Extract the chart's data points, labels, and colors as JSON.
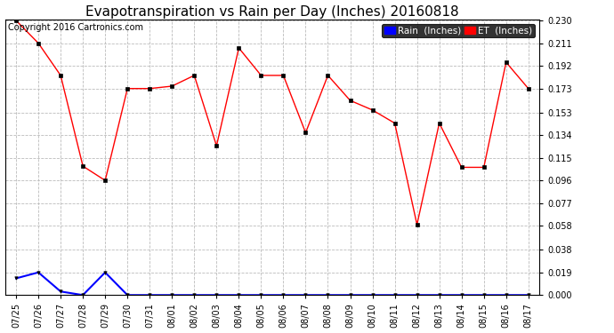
{
  "title": "Evapotranspiration vs Rain per Day (Inches) 20160818",
  "copyright": "Copyright 2016 Cartronics.com",
  "x_labels": [
    "07/25",
    "07/26",
    "07/27",
    "07/28",
    "07/29",
    "07/30",
    "07/31",
    "08/01",
    "08/02",
    "08/03",
    "08/04",
    "08/05",
    "08/06",
    "08/07",
    "08/08",
    "08/09",
    "08/10",
    "08/11",
    "08/12",
    "08/13",
    "08/14",
    "08/15",
    "08/16",
    "08/17"
  ],
  "et_values": [
    0.23,
    0.211,
    0.184,
    0.108,
    0.096,
    0.173,
    0.173,
    0.175,
    0.184,
    0.125,
    0.207,
    0.184,
    0.184,
    0.136,
    0.184,
    0.163,
    0.155,
    0.144,
    0.059,
    0.144,
    0.107,
    0.107,
    0.195,
    0.173
  ],
  "rain_values": [
    0.014,
    0.019,
    0.003,
    0.0,
    0.019,
    0.0,
    0.0,
    0.0,
    0.0,
    0.0,
    0.0,
    0.0,
    0.0,
    0.0,
    0.0,
    0.0,
    0.0,
    0.0,
    0.0,
    0.0,
    0.0,
    0.0,
    0.0,
    0.0
  ],
  "et_color": "#ff0000",
  "rain_color": "#0000ff",
  "legend_rain_bg": "#0000ff",
  "legend_et_bg": "#ff0000",
  "ylim_min": 0.0,
  "ylim_max": 0.23,
  "yticks": [
    0.0,
    0.019,
    0.038,
    0.058,
    0.077,
    0.096,
    0.115,
    0.134,
    0.153,
    0.173,
    0.192,
    0.211,
    0.23
  ],
  "background_color": "#ffffff",
  "grid_color": "#bbbbbb",
  "title_fontsize": 11,
  "copyright_fontsize": 7,
  "tick_label_fontsize": 7,
  "legend_fontsize": 7.5
}
